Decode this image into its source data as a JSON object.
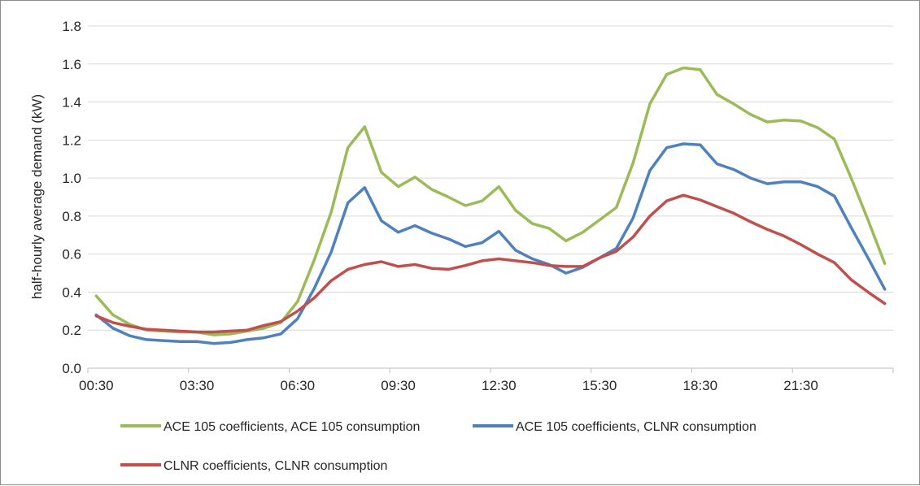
{
  "chart_data": {
    "type": "line",
    "ylabel": "half-hourly average demand (kW)",
    "xlabel": "",
    "ylim": [
      0,
      1.8
    ],
    "yticks": [
      "0.0",
      "0.2",
      "0.4",
      "0.6",
      "0.8",
      "1.0",
      "1.2",
      "1.4",
      "1.6",
      "1.8"
    ],
    "xtick_labels": [
      "00:30",
      "03:30",
      "06:30",
      "09:30",
      "12:30",
      "15:30",
      "18:30",
      "21:30"
    ],
    "x": [
      "00:30",
      "01:00",
      "01:30",
      "02:00",
      "02:30",
      "03:00",
      "03:30",
      "04:00",
      "04:30",
      "05:00",
      "05:30",
      "06:00",
      "06:30",
      "07:00",
      "07:30",
      "08:00",
      "08:30",
      "09:00",
      "09:30",
      "10:00",
      "10:30",
      "11:00",
      "11:30",
      "12:00",
      "12:30",
      "13:00",
      "13:30",
      "14:00",
      "14:30",
      "15:00",
      "15:30",
      "16:00",
      "16:30",
      "17:00",
      "17:30",
      "18:00",
      "18:30",
      "19:00",
      "19:30",
      "20:00",
      "20:30",
      "21:00",
      "21:30",
      "22:00",
      "22:30",
      "23:00",
      "23:30",
      "00:00"
    ],
    "grid": "horizontal",
    "legend_position": "bottom",
    "series": [
      {
        "name": "ACE 105 coefficients, ACE 105 consumption",
        "color": "#9bbb59",
        "values": [
          0.38,
          0.28,
          0.23,
          0.2,
          0.195,
          0.19,
          0.19,
          0.175,
          0.18,
          0.195,
          0.21,
          0.24,
          0.35,
          0.57,
          0.82,
          1.16,
          1.27,
          1.03,
          0.955,
          1.005,
          0.94,
          0.9,
          0.855,
          0.88,
          0.955,
          0.83,
          0.76,
          0.735,
          0.67,
          0.715,
          0.78,
          0.845,
          1.08,
          1.39,
          1.545,
          1.58,
          1.57,
          1.44,
          1.39,
          1.335,
          1.295,
          1.305,
          1.3,
          1.265,
          1.205,
          1.0,
          0.78,
          0.55
        ]
      },
      {
        "name": "ACE 105 coefficients, CLNR consumption",
        "color": "#4f81bd",
        "values": [
          0.28,
          0.21,
          0.17,
          0.15,
          0.145,
          0.14,
          0.14,
          0.13,
          0.135,
          0.15,
          0.16,
          0.18,
          0.26,
          0.42,
          0.61,
          0.87,
          0.95,
          0.775,
          0.715,
          0.75,
          0.71,
          0.68,
          0.64,
          0.66,
          0.72,
          0.62,
          0.575,
          0.545,
          0.5,
          0.53,
          0.58,
          0.63,
          0.79,
          1.04,
          1.16,
          1.18,
          1.175,
          1.075,
          1.045,
          1.0,
          0.97,
          0.98,
          0.98,
          0.955,
          0.905,
          0.74,
          0.58,
          0.415
        ]
      },
      {
        "name": "CLNR coefficients, CLNR consumption",
        "color": "#c0504d",
        "values": [
          0.275,
          0.24,
          0.22,
          0.205,
          0.2,
          0.195,
          0.19,
          0.19,
          0.195,
          0.2,
          0.225,
          0.245,
          0.3,
          0.37,
          0.46,
          0.52,
          0.545,
          0.56,
          0.535,
          0.545,
          0.525,
          0.52,
          0.54,
          0.565,
          0.575,
          0.565,
          0.555,
          0.54,
          0.535,
          0.535,
          0.58,
          0.615,
          0.69,
          0.8,
          0.88,
          0.91,
          0.885,
          0.85,
          0.815,
          0.77,
          0.73,
          0.695,
          0.65,
          0.6,
          0.555,
          0.465,
          0.4,
          0.34
        ]
      }
    ]
  }
}
